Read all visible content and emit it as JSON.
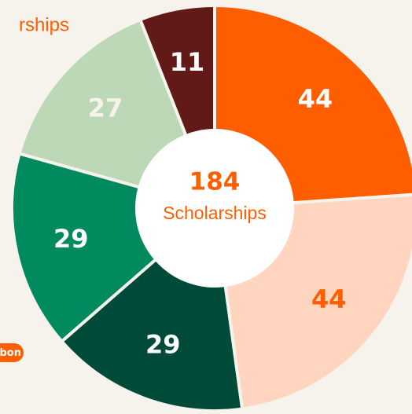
{
  "chart_data": {
    "type": "pie",
    "title": "rships",
    "badge": "sbon",
    "total": 184,
    "center_label": "Scholarships",
    "values": [
      44,
      44,
      29,
      29,
      27,
      11
    ],
    "colors": [
      "#ff5e00",
      "#ffd5bf",
      "#004a3a",
      "#008a5e",
      "#bcd8b6",
      "#611a17"
    ],
    "label_colors": [
      "#ffffff",
      "#ff5e00",
      "#ffffff",
      "#ffffff",
      "#f6f2ec",
      "#ffffff"
    ],
    "inner_radius_ratio": 0.39
  }
}
